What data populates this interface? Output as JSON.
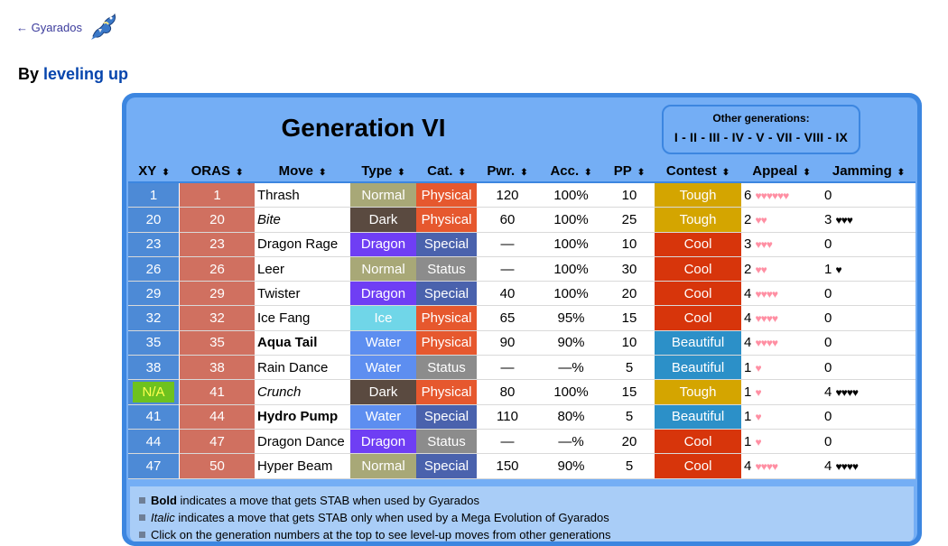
{
  "nav": {
    "back_label": "← Gyarados",
    "sprite_icon": "gyarados-sprite-icon"
  },
  "section": {
    "prefix": "By ",
    "link": "leveling up"
  },
  "panel": {
    "title": "Generation VI",
    "other_gens_label": "Other generations:",
    "other_gens": "I - II - III - IV - V - VII - VIII - IX"
  },
  "headers": [
    "XY",
    "ORAS",
    "Move",
    "Type",
    "Cat.",
    "Pwr.",
    "Acc.",
    "PP",
    "Contest",
    "Appeal",
    "Jamming"
  ],
  "sort_icon": "⬍",
  "colors": {
    "Normal": "#a8a877",
    "Dark": "#5a4a40",
    "Dragon": "#6f3ef4",
    "Ice": "#70d6e8",
    "Water": "#5d8ef0",
    "Physical": "#e6582e",
    "Special": "#4a62ad",
    "Status": "#8c8c8c",
    "Tough": "#d4a500",
    "Cool": "#d7350b",
    "Beautiful": "#2c90c8"
  },
  "rows": [
    {
      "xy": "1",
      "oras": "1",
      "move": "Thrash",
      "style": "",
      "type": "Normal",
      "cat": "Physical",
      "pwr": "120",
      "acc": "100%",
      "pp": "10",
      "contest": "Tough",
      "appeal_n": "6",
      "appeal_h": "♥♥♥♥♥♥",
      "jam_n": "0",
      "jam_h": ""
    },
    {
      "xy": "20",
      "oras": "20",
      "move": "Bite",
      "style": "italic",
      "type": "Dark",
      "cat": "Physical",
      "pwr": "60",
      "acc": "100%",
      "pp": "25",
      "contest": "Tough",
      "appeal_n": "2",
      "appeal_h": "♥♥",
      "jam_n": "3",
      "jam_h": "♥♥♥"
    },
    {
      "xy": "23",
      "oras": "23",
      "move": "Dragon Rage",
      "style": "",
      "type": "Dragon",
      "cat": "Special",
      "pwr": "—",
      "acc": "100%",
      "pp": "10",
      "contest": "Cool",
      "appeal_n": "3",
      "appeal_h": "♥♥♥",
      "jam_n": "0",
      "jam_h": ""
    },
    {
      "xy": "26",
      "oras": "26",
      "move": "Leer",
      "style": "",
      "type": "Normal",
      "cat": "Status",
      "pwr": "—",
      "acc": "100%",
      "pp": "30",
      "contest": "Cool",
      "appeal_n": "2",
      "appeal_h": "♥♥",
      "jam_n": "1",
      "jam_h": "♥"
    },
    {
      "xy": "29",
      "oras": "29",
      "move": "Twister",
      "style": "",
      "type": "Dragon",
      "cat": "Special",
      "pwr": "40",
      "acc": "100%",
      "pp": "20",
      "contest": "Cool",
      "appeal_n": "4",
      "appeal_h": "♥♥♥♥",
      "jam_n": "0",
      "jam_h": ""
    },
    {
      "xy": "32",
      "oras": "32",
      "move": "Ice Fang",
      "style": "",
      "type": "Ice",
      "cat": "Physical",
      "pwr": "65",
      "acc": "95%",
      "pp": "15",
      "contest": "Cool",
      "appeal_n": "4",
      "appeal_h": "♥♥♥♥",
      "jam_n": "0",
      "jam_h": ""
    },
    {
      "xy": "35",
      "oras": "35",
      "move": "Aqua Tail",
      "style": "bold",
      "type": "Water",
      "cat": "Physical",
      "pwr": "90",
      "acc": "90%",
      "pp": "10",
      "contest": "Beautiful",
      "appeal_n": "4",
      "appeal_h": "♥♥♥♥",
      "jam_n": "0",
      "jam_h": ""
    },
    {
      "xy": "38",
      "oras": "38",
      "move": "Rain Dance",
      "style": "",
      "type": "Water",
      "cat": "Status",
      "pwr": "—",
      "acc": "—%",
      "pp": "5",
      "contest": "Beautiful",
      "appeal_n": "1",
      "appeal_h": "♥",
      "jam_n": "0",
      "jam_h": ""
    },
    {
      "xy": "N/A",
      "oras": "41",
      "move": "Crunch",
      "style": "italic",
      "type": "Dark",
      "cat": "Physical",
      "pwr": "80",
      "acc": "100%",
      "pp": "15",
      "contest": "Tough",
      "appeal_n": "1",
      "appeal_h": "♥",
      "jam_n": "4",
      "jam_h": "♥♥♥♥"
    },
    {
      "xy": "41",
      "oras": "44",
      "move": "Hydro Pump",
      "style": "bold",
      "type": "Water",
      "cat": "Special",
      "pwr": "110",
      "acc": "80%",
      "pp": "5",
      "contest": "Beautiful",
      "appeal_n": "1",
      "appeal_h": "♥",
      "jam_n": "0",
      "jam_h": ""
    },
    {
      "xy": "44",
      "oras": "47",
      "move": "Dragon Dance",
      "style": "",
      "type": "Dragon",
      "cat": "Status",
      "pwr": "—",
      "acc": "—%",
      "pp": "20",
      "contest": "Cool",
      "appeal_n": "1",
      "appeal_h": "♥",
      "jam_n": "0",
      "jam_h": ""
    },
    {
      "xy": "47",
      "oras": "50",
      "move": "Hyper Beam",
      "style": "",
      "type": "Normal",
      "cat": "Special",
      "pwr": "150",
      "acc": "90%",
      "pp": "5",
      "contest": "Cool",
      "appeal_n": "4",
      "appeal_h": "♥♥♥♥",
      "jam_n": "4",
      "jam_h": "♥♥♥♥"
    }
  ],
  "footnotes": [
    {
      "lead": "Bold",
      "lead_style": "bold",
      "rest": " indicates a move that gets STAB when used by Gyarados"
    },
    {
      "lead": "Italic",
      "lead_style": "italic",
      "rest": " indicates a move that gets STAB only when used by a Mega Evolution of Gyarados"
    },
    {
      "lead": "",
      "lead_style": "",
      "rest": "Click on the generation numbers at the top to see level-up moves from other generations"
    }
  ]
}
